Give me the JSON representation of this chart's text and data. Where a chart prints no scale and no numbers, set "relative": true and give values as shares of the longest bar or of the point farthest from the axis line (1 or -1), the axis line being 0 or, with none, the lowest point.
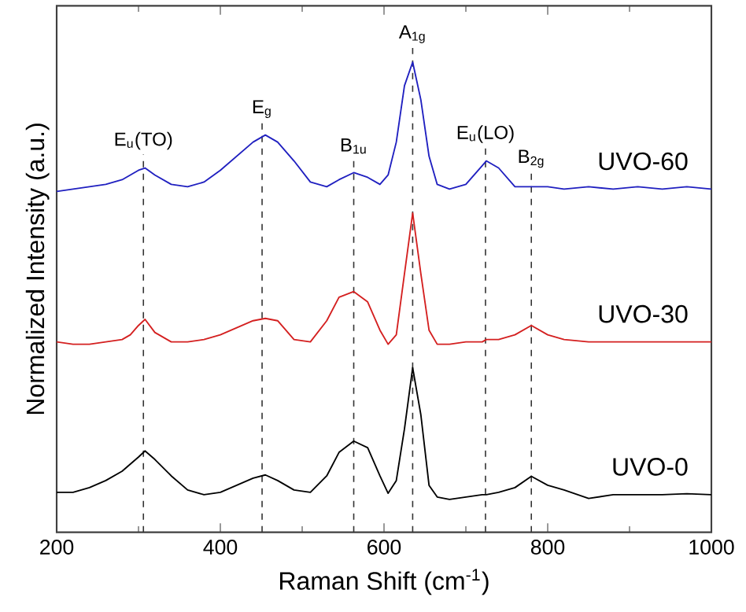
{
  "chart_data": {
    "type": "line",
    "xlabel": "Raman Shift (cm$^{-1}$)",
    "ylabel": "Normalized Intensity (a.u.)",
    "relative": true,
    "xlim": [
      200,
      1000
    ],
    "xticks": [
      200,
      400,
      600,
      800,
      1000
    ],
    "grid": false,
    "legend": false,
    "marker": "none",
    "line_style": "solid",
    "x": [
      200,
      220,
      240,
      260,
      280,
      290,
      300,
      308,
      320,
      340,
      360,
      380,
      400,
      420,
      440,
      455,
      470,
      490,
      510,
      530,
      545,
      563,
      580,
      595,
      605,
      615,
      625,
      635,
      645,
      655,
      665,
      680,
      700,
      720,
      725,
      740,
      760,
      780,
      800,
      820,
      850,
      880,
      910,
      940,
      970,
      1000
    ],
    "series": [
      {
        "name": "UVO-60",
        "color": "#2020c0",
        "values": [
          0.725,
          0.73,
          0.735,
          0.74,
          0.75,
          0.76,
          0.77,
          0.775,
          0.76,
          0.74,
          0.735,
          0.745,
          0.77,
          0.8,
          0.83,
          0.845,
          0.83,
          0.79,
          0.745,
          0.735,
          0.75,
          0.765,
          0.755,
          0.74,
          0.76,
          0.83,
          0.95,
          1.0,
          0.92,
          0.8,
          0.74,
          0.73,
          0.74,
          0.78,
          0.79,
          0.775,
          0.735,
          0.735,
          0.735,
          0.73,
          0.735,
          0.73,
          0.735,
          0.73,
          0.735,
          0.73
        ]
      },
      {
        "name": "UVO-30",
        "color": "#d42020",
        "values": [
          0.405,
          0.4,
          0.4,
          0.405,
          0.41,
          0.42,
          0.44,
          0.453,
          0.425,
          0.405,
          0.405,
          0.41,
          0.42,
          0.435,
          0.45,
          0.455,
          0.45,
          0.41,
          0.405,
          0.45,
          0.5,
          0.512,
          0.49,
          0.43,
          0.4,
          0.42,
          0.55,
          0.679,
          0.55,
          0.43,
          0.4,
          0.4,
          0.405,
          0.405,
          0.41,
          0.41,
          0.42,
          0.44,
          0.42,
          0.41,
          0.405,
          0.405,
          0.405,
          0.405,
          0.405,
          0.405
        ]
      },
      {
        "name": "UVO-0",
        "color": "#000000",
        "values": [
          0.085,
          0.085,
          0.095,
          0.11,
          0.13,
          0.145,
          0.16,
          0.173,
          0.155,
          0.12,
          0.09,
          0.08,
          0.085,
          0.1,
          0.115,
          0.122,
          0.11,
          0.09,
          0.085,
          0.12,
          0.17,
          0.194,
          0.18,
          0.12,
          0.083,
          0.11,
          0.22,
          0.35,
          0.25,
          0.1,
          0.075,
          0.07,
          0.075,
          0.08,
          0.08,
          0.085,
          0.095,
          0.119,
          0.1,
          0.09,
          0.072,
          0.08,
          0.08,
          0.08,
          0.082,
          0.08
        ]
      }
    ],
    "ref_lines": [
      {
        "axis": "x",
        "value": 306,
        "label": "E$_{u}$(TO)",
        "color": "#333333",
        "line_style": "dashed"
      },
      {
        "axis": "x",
        "value": 451,
        "label": "E$_{g}$",
        "color": "#333333",
        "line_style": "dashed"
      },
      {
        "axis": "x",
        "value": 563,
        "label": "B$_{1u}$",
        "color": "#333333",
        "line_style": "dashed"
      },
      {
        "axis": "x",
        "value": 635,
        "label": "A$_{1g}$",
        "color": "#333333",
        "line_style": "dashed"
      },
      {
        "axis": "x",
        "value": 724,
        "label": "E$_{u}$(LO)",
        "color": "#333333",
        "line_style": "dashed"
      },
      {
        "axis": "x",
        "value": 780,
        "label": "B$_{2g}$",
        "color": "#333333",
        "line_style": "dashed"
      }
    ]
  }
}
